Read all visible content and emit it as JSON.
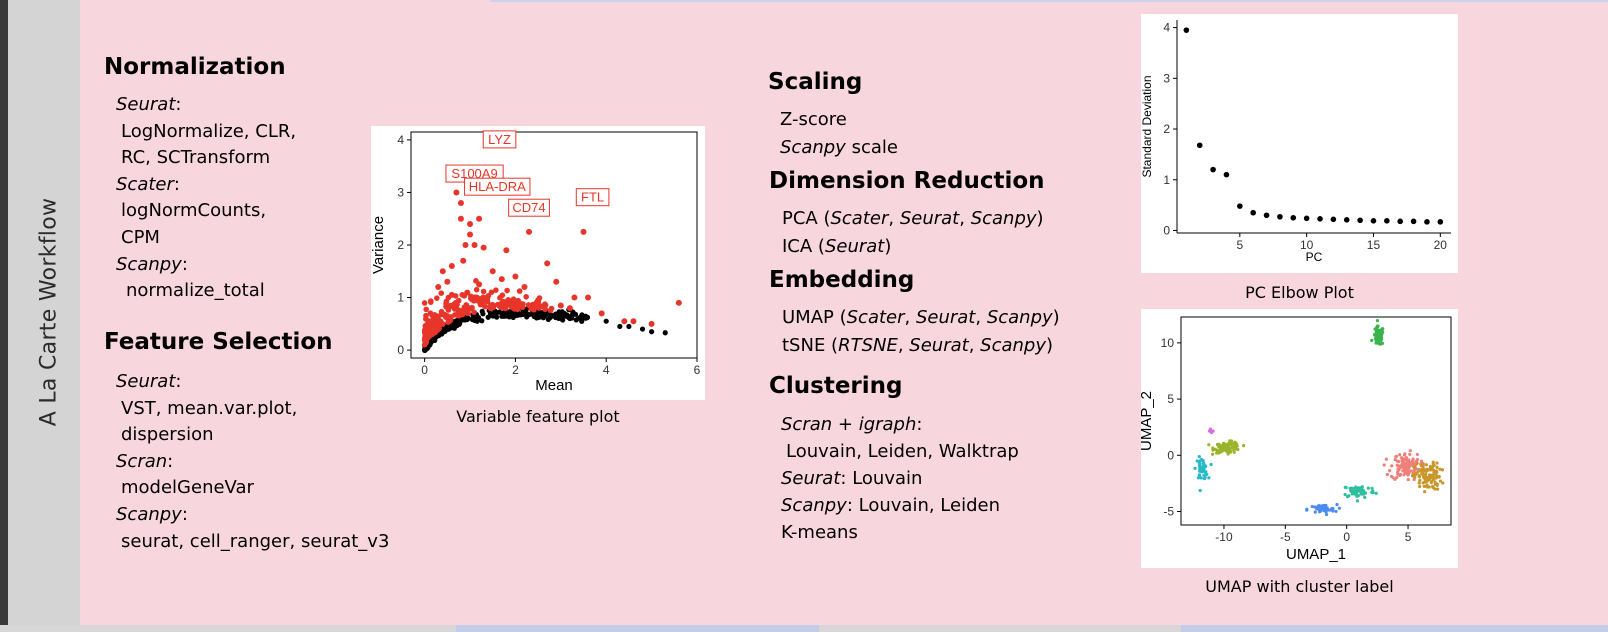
{
  "sidebar": {
    "title": "A La Carte Workflow"
  },
  "normalization": {
    "heading": "Normalization",
    "lines": [
      [
        [
          "Seurat",
          true
        ],
        [
          ":",
          false
        ]
      ],
      [
        [
          "LogNormalize, CLR,",
          false
        ]
      ],
      [
        [
          "RC, SCTransform",
          false
        ]
      ],
      [
        [
          "Scater",
          true
        ],
        [
          ":",
          false
        ]
      ],
      [
        [
          "logNormCounts,",
          false
        ]
      ],
      [
        [
          "CPM",
          false
        ]
      ],
      [
        [
          "Scanpy",
          true
        ],
        [
          ":",
          false
        ]
      ],
      [
        [
          "normalize_total",
          false
        ]
      ]
    ]
  },
  "feature_selection": {
    "heading": "Feature Selection",
    "lines": [
      [
        [
          "Seurat",
          true
        ],
        [
          ":",
          false
        ]
      ],
      [
        [
          "VST, mean.var.plot,",
          false
        ]
      ],
      [
        [
          "dispersion",
          false
        ]
      ],
      [
        [
          "Scran",
          true
        ],
        [
          ":",
          false
        ]
      ],
      [
        [
          "modelGeneVar",
          false
        ]
      ],
      [
        [
          "Scanpy",
          true
        ],
        [
          ":",
          false
        ]
      ],
      [
        [
          "seurat, cell_ranger, seurat_v3",
          false
        ]
      ]
    ]
  },
  "scaling": {
    "heading": "Scaling",
    "lines": [
      [
        [
          "Z-score",
          false
        ]
      ],
      [
        [
          "Scanpy",
          true
        ],
        [
          " scale",
          false
        ]
      ]
    ]
  },
  "dimension_reduction": {
    "heading": "Dimension Reduction",
    "lines": [
      [
        [
          "PCA (",
          false
        ],
        [
          "Scater",
          true
        ],
        [
          ", ",
          false
        ],
        [
          "Seurat",
          true
        ],
        [
          ", ",
          false
        ],
        [
          "Scanpy",
          true
        ],
        [
          ")",
          false
        ]
      ],
      [
        [
          "ICA (",
          false
        ],
        [
          "Seurat",
          true
        ],
        [
          ")",
          false
        ]
      ]
    ]
  },
  "embedding": {
    "heading": "Embedding",
    "lines": [
      [
        [
          "UMAP (",
          false
        ],
        [
          "Scater",
          true
        ],
        [
          ", ",
          false
        ],
        [
          "Seurat",
          true
        ],
        [
          ", ",
          false
        ],
        [
          "Scanpy",
          true
        ],
        [
          ")",
          false
        ]
      ],
      [
        [
          "tSNE (",
          false
        ],
        [
          "RTSNE",
          true
        ],
        [
          ", ",
          false
        ],
        [
          "Seurat",
          true
        ],
        [
          ", ",
          false
        ],
        [
          "Scanpy",
          true
        ],
        [
          ")",
          false
        ]
      ]
    ]
  },
  "clustering": {
    "heading": "Clustering",
    "lines": [
      [
        [
          "Scran",
          true
        ],
        [
          " + ",
          false
        ],
        [
          "igraph",
          true
        ],
        [
          ":",
          false
        ]
      ],
      [
        [
          "Louvain, Leiden, Walktrap",
          false
        ]
      ],
      [
        [
          "Seurat",
          true
        ],
        [
          ": Louvain",
          false
        ]
      ],
      [
        [
          "Scanpy",
          true
        ],
        [
          ": Louvain, Leiden",
          false
        ]
      ],
      [
        [
          "K-means",
          false
        ]
      ]
    ]
  },
  "variable_feature_plot": {
    "caption": "Variable feature plot",
    "xlabel": "Mean",
    "ylabel": "Variance",
    "xticks": [
      0,
      2,
      4,
      6
    ],
    "yticks": [
      0,
      1,
      2,
      3,
      4
    ],
    "xlim": [
      -0.3,
      6.0
    ],
    "ylim": [
      -0.15,
      4.15
    ],
    "highlight_color": "#e8352a",
    "base_color": "#000000",
    "gene_labels": [
      {
        "gene": "LYZ",
        "x": 1.65,
        "y": 4.0
      },
      {
        "gene": "S100A9",
        "x": 1.1,
        "y": 3.35
      },
      {
        "gene": "HLA-DRA",
        "x": 1.6,
        "y": 3.1
      },
      {
        "gene": "CD74",
        "x": 2.3,
        "y": 2.7
      },
      {
        "gene": "FTL",
        "x": 3.7,
        "y": 2.9
      }
    ],
    "highlighted_points": [
      [
        0.7,
        3.0
      ],
      [
        0.8,
        2.8
      ],
      [
        0.8,
        2.5
      ],
      [
        1.0,
        2.4
      ],
      [
        1.0,
        2.2
      ],
      [
        1.1,
        2.0
      ],
      [
        0.9,
        2.0
      ],
      [
        2.3,
        2.25
      ],
      [
        3.5,
        2.25
      ],
      [
        1.2,
        2.5
      ],
      [
        0.85,
        1.7
      ],
      [
        1.3,
        1.95
      ],
      [
        2.7,
        1.65
      ],
      [
        1.8,
        1.9
      ],
      [
        2.9,
        1.3
      ],
      [
        3.3,
        1.0
      ],
      [
        3.6,
        1.0
      ],
      [
        3.9,
        0.7
      ],
      [
        4.4,
        0.55
      ],
      [
        4.6,
        0.55
      ],
      [
        5.0,
        0.5
      ],
      [
        5.6,
        0.9
      ],
      [
        2.0,
        1.4
      ],
      [
        1.5,
        1.5
      ],
      [
        0.6,
        1.6
      ],
      [
        0.4,
        1.5
      ],
      [
        0.5,
        1.3
      ],
      [
        1.7,
        1.35
      ],
      [
        2.2,
        1.2
      ],
      [
        2.5,
        0.95
      ],
      [
        3.0,
        0.85
      ],
      [
        3.2,
        0.8
      ],
      [
        0.3,
        1.2
      ],
      [
        1.2,
        1.25
      ],
      [
        0.6,
        1.05
      ]
    ],
    "base_points": [
      [
        4.3,
        0.45
      ],
      [
        4.8,
        0.4
      ],
      [
        5.0,
        0.35
      ],
      [
        5.3,
        0.33
      ],
      [
        4.0,
        0.55
      ],
      [
        4.5,
        0.45
      ]
    ]
  },
  "elbow_plot": {
    "caption": "PC Elbow Plot",
    "xlabel": "PC",
    "ylabel": "Standard Deviation",
    "xticks": [
      5,
      10,
      15,
      20
    ],
    "yticks": [
      0,
      1,
      2,
      3,
      4
    ],
    "xlim": [
      0.3,
      20.8
    ],
    "ylim": [
      -0.05,
      4.15
    ],
    "points": [
      [
        1,
        3.95
      ],
      [
        2,
        1.68
      ],
      [
        3,
        1.2
      ],
      [
        4,
        1.1
      ],
      [
        5,
        0.48
      ],
      [
        6,
        0.35
      ],
      [
        7,
        0.3
      ],
      [
        8,
        0.27
      ],
      [
        9,
        0.25
      ],
      [
        10,
        0.24
      ],
      [
        11,
        0.23
      ],
      [
        12,
        0.22
      ],
      [
        13,
        0.21
      ],
      [
        14,
        0.2
      ],
      [
        15,
        0.19
      ],
      [
        16,
        0.19
      ],
      [
        17,
        0.18
      ],
      [
        18,
        0.18
      ],
      [
        19,
        0.17
      ],
      [
        20,
        0.17
      ]
    ]
  },
  "umap_plot": {
    "caption": "UMAP with cluster label",
    "xlabel": "UMAP_1",
    "ylabel": "UMAP_2",
    "xticks": [
      -10,
      -5,
      0,
      5
    ],
    "yticks": [
      -5,
      0,
      5,
      10
    ],
    "xlim": [
      -13.5,
      8.5
    ],
    "ylim": [
      -6.2,
      12.3
    ],
    "clusters": [
      {
        "color": "#39b54a",
        "cx": 2.6,
        "cy": 10.6,
        "sx": 0.35,
        "sy": 0.7,
        "n": 70
      },
      {
        "color": "#9ab42a",
        "cx": -9.7,
        "cy": 0.7,
        "sx": 0.9,
        "sy": 0.4,
        "n": 90
      },
      {
        "color": "#27b9c9",
        "cx": -11.8,
        "cy": -1.2,
        "sx": 0.4,
        "sy": 0.8,
        "n": 40
      },
      {
        "color": "#4a8cf0",
        "cx": -2.0,
        "cy": -4.8,
        "sx": 1.0,
        "sy": 0.35,
        "n": 40
      },
      {
        "color": "#2fbfa0",
        "cx": 1.0,
        "cy": -3.2,
        "sx": 1.1,
        "sy": 0.5,
        "n": 60
      },
      {
        "color": "#f07f7a",
        "cx": 4.8,
        "cy": -1.0,
        "sx": 1.0,
        "sy": 1.0,
        "n": 120
      },
      {
        "color": "#c9962a",
        "cx": 6.6,
        "cy": -1.9,
        "sx": 0.9,
        "sy": 1.0,
        "n": 110
      },
      {
        "color": "#d66ee0",
        "cx": -11.0,
        "cy": 2.1,
        "sx": 0.2,
        "sy": 0.25,
        "n": 8
      }
    ]
  }
}
